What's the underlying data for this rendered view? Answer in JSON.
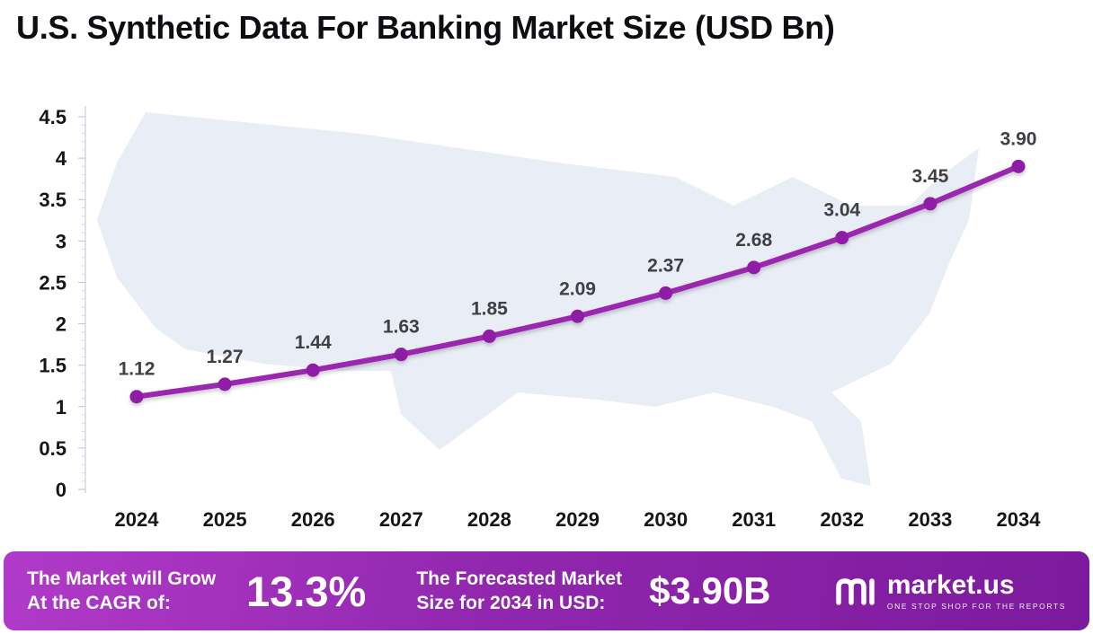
{
  "title": "U.S. Synthetic Data For Banking Market Size (USD Bn)",
  "chart_data": {
    "type": "line",
    "title": "U.S. Synthetic Data For Banking Market Size (USD Bn)",
    "x": [
      2024,
      2025,
      2026,
      2027,
      2028,
      2029,
      2030,
      2031,
      2032,
      2033,
      2034
    ],
    "series": [
      {
        "name": "U.S. Synthetic Data For Banking Market Size (USD Bn)",
        "values": [
          1.12,
          1.27,
          1.44,
          1.63,
          1.85,
          2.09,
          2.37,
          2.68,
          3.04,
          3.45,
          3.9
        ]
      }
    ],
    "data_labels": [
      "1.12",
      "1.27",
      "1.44",
      "1.63",
      "1.85",
      "2.09",
      "2.37",
      "2.68",
      "3.04",
      "3.45",
      "3.90"
    ],
    "xlabel": "",
    "ylabel": "",
    "ylim": [
      0,
      4.5
    ],
    "ytick_step": 0.5,
    "ytick_labels": [
      "0",
      "0.5",
      "1",
      "1.5",
      "2",
      "2.5",
      "3",
      "3.5",
      "4",
      "4.5"
    ],
    "grid": false,
    "legend": false,
    "line_color": "#9b27b0",
    "marker_color": "#8e1fa6",
    "label_color": "#3f3f44",
    "background": "faint US map silhouette"
  },
  "footer": {
    "cagr_label_line1": "The Market will Grow",
    "cagr_label_line2": "At the CAGR of:",
    "cagr_value": "13.3%",
    "forecast_label_line1": "The Forecasted Market",
    "forecast_label_line2": "Size for 2034 in USD:",
    "forecast_value": "$3.90B",
    "brand": "market.us",
    "brand_tagline": "ONE STOP SHOP FOR THE REPORTS",
    "background_colors": [
      "#b13ac9",
      "#7c1a9e"
    ]
  }
}
